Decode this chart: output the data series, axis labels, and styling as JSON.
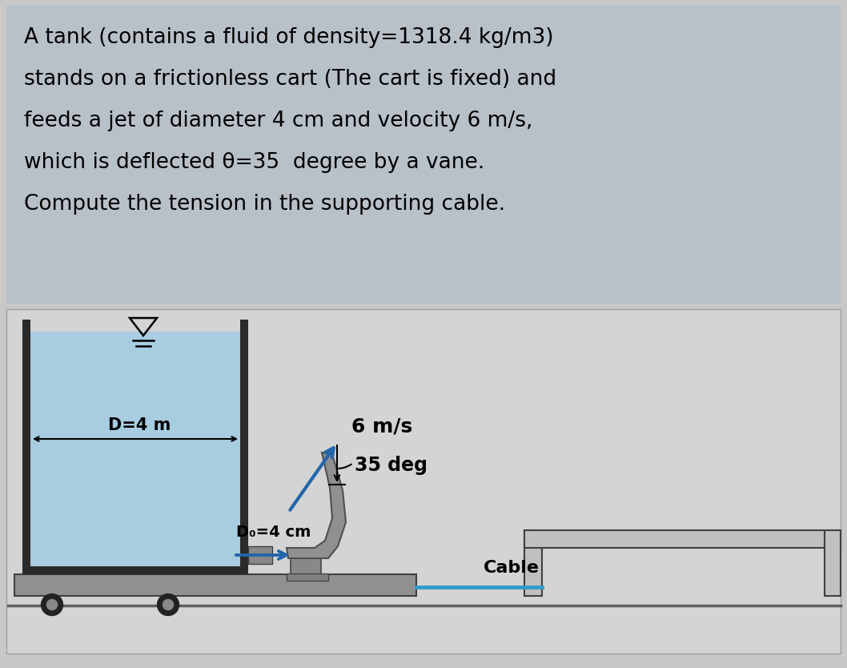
{
  "overall_bg": "#c8c8c8",
  "text_box_bg": "#b8c0c8",
  "diag_bg": "#d4d4d4",
  "problem_text": [
    "A tank (contains a fluid of density=1318.4 kg/m3)",
    "stands on a frictionless cart (The cart is fixed) and",
    "feeds a jet of diameter 4 cm and velocity 6 m/s,",
    "which is deflected θ=35  degree by a vane.",
    "Compute the tension in the supporting cable."
  ],
  "fluid_color": "#a8cce0",
  "tank_wall_color": "#2a2a2a",
  "cart_color": "#909090",
  "cart_edge_color": "#404040",
  "vane_color": "#909090",
  "vane_edge_color": "#505050",
  "cable_color": "#3399cc",
  "jet_arrow_color": "#2266aa",
  "wall_color": "#c0c0c0",
  "wall_edge": "#404040",
  "ground_color": "#606060",
  "label_D": "D=4 m",
  "label_Do": "D₀=4 cm",
  "label_vel": "6 m/s",
  "label_angle": "35 deg",
  "label_cable": "Cable",
  "text_fontsize": 19,
  "label_fontsize": 15
}
